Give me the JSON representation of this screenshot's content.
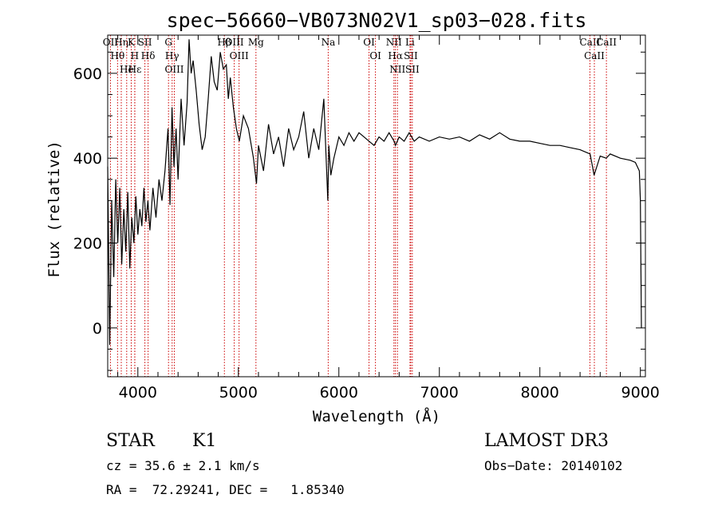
{
  "chart_data": {
    "type": "line",
    "title": "spec−56660−VB073N02V1_sp03−028.fits",
    "xlabel": "Wavelength (Å)",
    "ylabel": "Flux (relative)",
    "xlim": [
      3700,
      9050
    ],
    "ylim": [
      -115,
      690
    ],
    "xticks": [
      4000,
      5000,
      6000,
      7000,
      8000,
      9000
    ],
    "yticks": [
      0,
      200,
      400,
      600
    ],
    "xtick_labels": [
      "4000",
      "5000",
      "6000",
      "7000",
      "8000",
      "9000"
    ],
    "ytick_labels": [
      "0",
      "200",
      "400",
      "600"
    ],
    "line_color": "#000000",
    "marker_color": "#cc0000",
    "spectrum": {
      "name": "flux",
      "x": [
        3700,
        3720,
        3740,
        3760,
        3780,
        3800,
        3820,
        3840,
        3860,
        3880,
        3900,
        3920,
        3940,
        3960,
        3980,
        4000,
        4020,
        4040,
        4060,
        4080,
        4100,
        4120,
        4150,
        4180,
        4210,
        4240,
        4270,
        4300,
        4320,
        4340,
        4360,
        4380,
        4400,
        4430,
        4460,
        4490,
        4510,
        4530,
        4550,
        4580,
        4610,
        4640,
        4670,
        4700,
        4730,
        4760,
        4790,
        4820,
        4850,
        4880,
        4900,
        4920,
        4950,
        4980,
        5010,
        5050,
        5100,
        5150,
        5180,
        5200,
        5250,
        5300,
        5350,
        5400,
        5450,
        5500,
        5550,
        5600,
        5650,
        5700,
        5750,
        5800,
        5850,
        5890,
        5900,
        5920,
        5950,
        6000,
        6050,
        6100,
        6150,
        6200,
        6250,
        6300,
        6350,
        6400,
        6450,
        6500,
        6550,
        6563,
        6600,
        6650,
        6700,
        6750,
        6800,
        6900,
        7000,
        7100,
        7200,
        7300,
        7400,
        7500,
        7600,
        7700,
        7800,
        7900,
        8000,
        8100,
        8200,
        8300,
        8400,
        8500,
        8540,
        8600,
        8660,
        8700,
        8800,
        8900,
        8950,
        8990,
        9000,
        9010
      ],
      "y": [
        380,
        -40,
        300,
        120,
        350,
        200,
        330,
        150,
        280,
        180,
        320,
        140,
        260,
        200,
        310,
        220,
        280,
        240,
        330,
        250,
        300,
        230,
        330,
        260,
        350,
        300,
        370,
        470,
        290,
        520,
        380,
        470,
        350,
        540,
        430,
        530,
        680,
        600,
        630,
        560,
        480,
        420,
        450,
        540,
        640,
        580,
        560,
        650,
        610,
        620,
        540,
        590,
        520,
        470,
        440,
        500,
        470,
        400,
        340,
        430,
        370,
        480,
        410,
        450,
        380,
        470,
        420,
        450,
        510,
        400,
        470,
        420,
        540,
        300,
        430,
        360,
        400,
        450,
        430,
        460,
        440,
        460,
        450,
        440,
        430,
        450,
        440,
        460,
        440,
        430,
        450,
        440,
        460,
        440,
        450,
        440,
        450,
        445,
        450,
        440,
        455,
        445,
        460,
        445,
        440,
        440,
        435,
        430,
        430,
        425,
        420,
        410,
        360,
        405,
        400,
        410,
        400,
        395,
        390,
        370,
        300,
        0
      ]
    },
    "lines": [
      {
        "label": "OII",
        "x": 3727
      },
      {
        "label": "Hθ",
        "x": 3798
      },
      {
        "label": "Hη",
        "x": 3835
      },
      {
        "label": "He",
        "x": 3889
      },
      {
        "label": "K",
        "x": 3934
      },
      {
        "label": "H",
        "x": 3969
      },
      {
        "label": "Hε",
        "x": 3970
      },
      {
        "label": "SII",
        "x": 4070
      },
      {
        "label": "Hδ",
        "x": 4102
      },
      {
        "label": "G",
        "x": 4305
      },
      {
        "label": "Hγ",
        "x": 4341
      },
      {
        "label": "OIII",
        "x": 4363
      },
      {
        "label": "Hβ",
        "x": 4861
      },
      {
        "label": "OIII",
        "x": 4959
      },
      {
        "label": "OIII",
        "x": 5007
      },
      {
        "label": "Mg",
        "x": 5175
      },
      {
        "label": "Na",
        "x": 5894
      },
      {
        "label": "OI",
        "x": 6300
      },
      {
        "label": "OI",
        "x": 6364
      },
      {
        "label": "NII",
        "x": 6548
      },
      {
        "label": "Hα",
        "x": 6563
      },
      {
        "label": "NII",
        "x": 6583
      },
      {
        "label": "Li",
        "x": 6708
      },
      {
        "label": "SII",
        "x": 6716
      },
      {
        "label": "SII",
        "x": 6731
      },
      {
        "label": "CaII",
        "x": 8498
      },
      {
        "label": "CaII",
        "x": 8542
      },
      {
        "label": "CaII",
        "x": 8662
      }
    ]
  },
  "info": {
    "object_class": "STAR",
    "subclass": "K1",
    "survey": "LAMOST DR3",
    "redshift": "cz = 35.6 ± 2.1 km/s",
    "obs_date": "Obs−Date: 20140102",
    "coords": "RA =  72.29241, DEC =   1.85340"
  }
}
